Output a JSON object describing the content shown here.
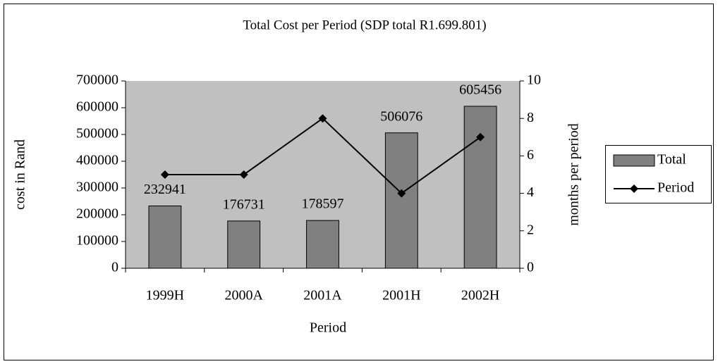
{
  "chart_data": {
    "type": "bar",
    "title": "Total Cost per Period (SDP total R1.699.801)",
    "categories": [
      "1999H",
      "2000A",
      "2001A",
      "2001H",
      "2002H"
    ],
    "series": [
      {
        "name": "Total",
        "color": "#808080",
        "values": [
          232941,
          176731,
          178597,
          506076,
          605456
        ],
        "data_labels": true
      },
      {
        "name": "Period",
        "color": "#000000",
        "type": "line",
        "axis": "y2",
        "values": [
          5,
          5,
          8,
          4,
          7
        ]
      }
    ],
    "xlabel": "Period",
    "ylabel": "cost in Rand",
    "y2label": "months per period",
    "ylim": [
      0,
      700000
    ],
    "yticks": [
      0,
      100000,
      200000,
      300000,
      400000,
      500000,
      600000,
      700000
    ],
    "y2lim": [
      0,
      10
    ],
    "y2ticks": [
      0,
      2,
      4,
      6,
      8,
      10
    ],
    "plot_background": "#c0c0c0",
    "legend": "right"
  }
}
